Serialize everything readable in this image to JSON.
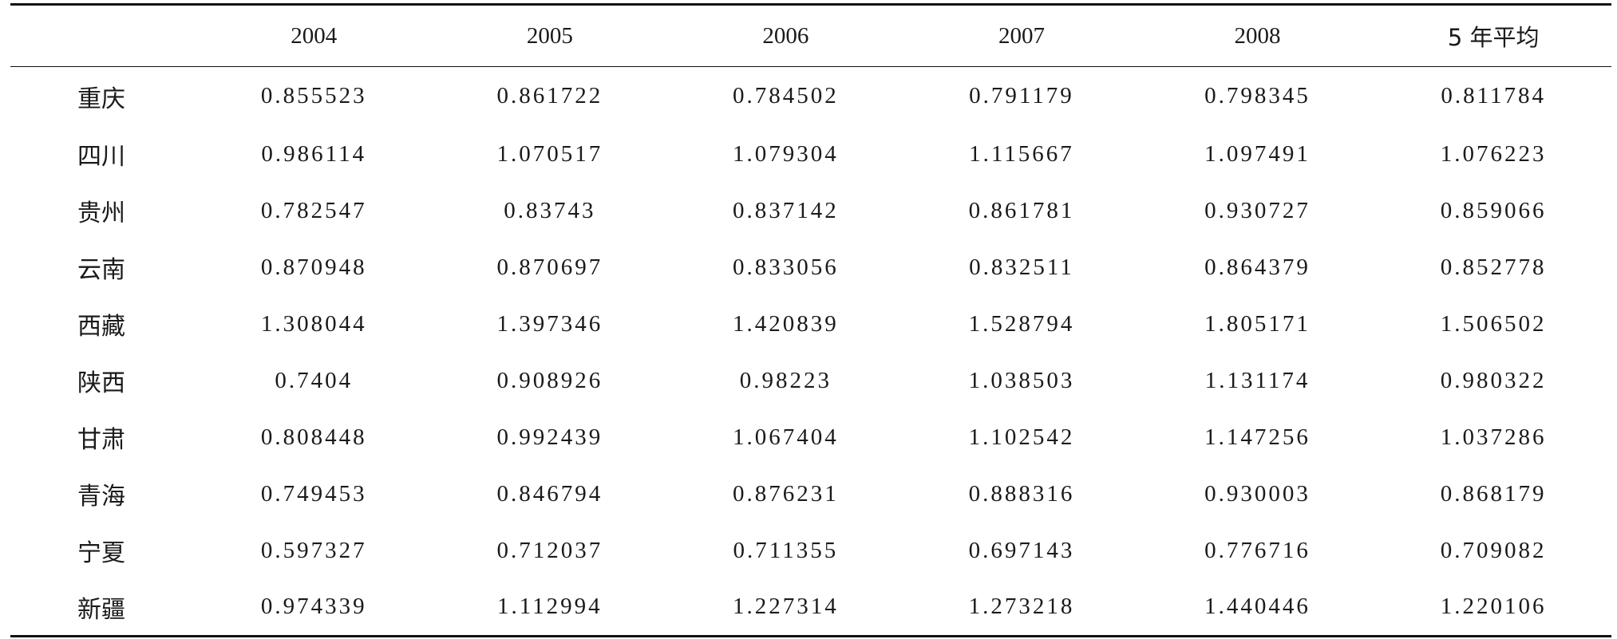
{
  "table": {
    "headers": [
      "",
      "2004",
      "2005",
      "2006",
      "2007",
      "2008",
      "5 年平均"
    ],
    "rows": [
      {
        "region": "重庆",
        "values": [
          "0.855523",
          "0.861722",
          "0.784502",
          "0.791179",
          "0.798345",
          "0.811784"
        ]
      },
      {
        "region": "四川",
        "values": [
          "0.986114",
          "1.070517",
          "1.079304",
          "1.115667",
          "1.097491",
          "1.076223"
        ]
      },
      {
        "region": "贵州",
        "values": [
          "0.782547",
          "0.83743",
          "0.837142",
          "0.861781",
          "0.930727",
          "0.859066"
        ]
      },
      {
        "region": "云南",
        "values": [
          "0.870948",
          "0.870697",
          "0.833056",
          "0.832511",
          "0.864379",
          "0.852778"
        ]
      },
      {
        "region": "西藏",
        "values": [
          "1.308044",
          "1.397346",
          "1.420839",
          "1.528794",
          "1.805171",
          "1.506502"
        ]
      },
      {
        "region": "陕西",
        "values": [
          "0.7404",
          "0.908926",
          "0.98223",
          "1.038503",
          "1.131174",
          "0.980322"
        ]
      },
      {
        "region": "甘肃",
        "values": [
          "0.808448",
          "0.992439",
          "1.067404",
          "1.102542",
          "1.147256",
          "1.037286"
        ]
      },
      {
        "region": "青海",
        "values": [
          "0.749453",
          "0.846794",
          "0.876231",
          "0.888316",
          "0.930003",
          "0.868179"
        ]
      },
      {
        "region": "宁夏",
        "values": [
          "0.597327",
          "0.712037",
          "0.711355",
          "0.697143",
          "0.776716",
          "0.709082"
        ]
      },
      {
        "region": "新疆",
        "values": [
          "0.974339",
          "1.112994",
          "1.227314",
          "1.273218",
          "1.440446",
          "1.220106"
        ]
      }
    ]
  }
}
